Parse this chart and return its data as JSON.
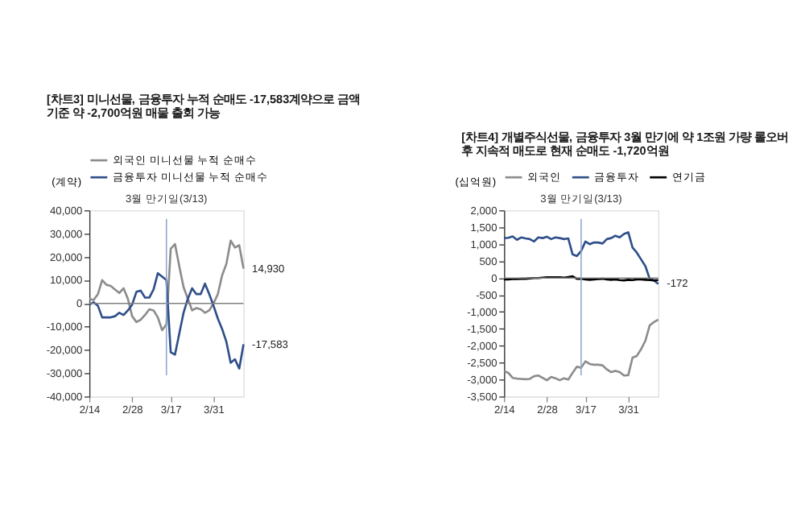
{
  "chart_data": [
    {
      "type": "line",
      "title": "[차트3] 미니선물, 금융투자 누적 순매도 -17,583계약으로 금액 기준 약 -2,700억원 매물 출회 가능",
      "ylabel": "(계약)",
      "legend": "top",
      "categories": [
        "2/14",
        null,
        null,
        null,
        null,
        null,
        null,
        null,
        null,
        null,
        "2/28",
        null,
        null,
        null,
        null,
        null,
        null,
        null,
        null,
        "3/17",
        null,
        null,
        null,
        null,
        null,
        null,
        null,
        null,
        null,
        "3/31",
        null,
        null,
        null,
        null,
        null,
        null,
        null
      ],
      "ylim": [
        -40000,
        40000
      ],
      "yticks": [
        {
          "value": -40000,
          "label": "-40,000"
        },
        {
          "value": -30000,
          "label": "-30,000"
        },
        {
          "value": -20000,
          "label": "-20,000"
        },
        {
          "value": -10000,
          "label": "-10,000"
        },
        {
          "value": 0,
          "label": "0"
        },
        {
          "value": 10000,
          "label": "10,000"
        },
        {
          "value": 20000,
          "label": "20,000"
        },
        {
          "value": 30000,
          "label": "30,000"
        },
        {
          "value": 40000,
          "label": "40,000"
        }
      ],
      "annotations": [
        "3월 만기일(3/13)"
      ],
      "series": [
        {
          "name": "외국인 미니선물 누적 순매수",
          "color": "#8c8c8c",
          "values": [
            2000,
            1500,
            4000,
            10000,
            8000,
            7500,
            6000,
            4500,
            6500,
            2000,
            -5500,
            -8000,
            -7000,
            -5000,
            -2500,
            -3000,
            -6000,
            -11500,
            -9000,
            23500,
            25500,
            16000,
            7000,
            2000,
            -3000,
            -2000,
            -2500,
            -4000,
            -3000,
            0,
            4000,
            12000,
            17000,
            27000,
            24000,
            25000,
            14930
          ],
          "value_labels": [
            null,
            null,
            null,
            null,
            null,
            null,
            null,
            null,
            null,
            null,
            null,
            null,
            null,
            null,
            null,
            null,
            null,
            null,
            null,
            null,
            null,
            null,
            null,
            null,
            null,
            null,
            null,
            null,
            null,
            null,
            null,
            null,
            null,
            null,
            null,
            null,
            "14,930"
          ]
        },
        {
          "name": "금융투자 미니선물 누적 순매수",
          "color": "#2f4f8a",
          "values": [
            -500,
            500,
            -1000,
            -6000,
            -6000,
            -6000,
            -5500,
            -4000,
            -5000,
            -3000,
            -500,
            5000,
            5500,
            2500,
            2500,
            6000,
            13000,
            11500,
            10000,
            -21000,
            -22000,
            -13000,
            -4000,
            2000,
            6500,
            4000,
            4000,
            8500,
            4000,
            -1000,
            -6500,
            -11000,
            -16500,
            -25500,
            -24000,
            -28000,
            -17583
          ],
          "value_labels": [
            null,
            null,
            null,
            null,
            null,
            null,
            null,
            null,
            null,
            null,
            null,
            null,
            null,
            null,
            null,
            null,
            null,
            null,
            null,
            null,
            null,
            null,
            null,
            null,
            null,
            null,
            null,
            null,
            null,
            null,
            null,
            null,
            null,
            null,
            null,
            null,
            "-17,583"
          ]
        }
      ],
      "ref_lines": [
        {
          "axis": "y",
          "value": 0,
          "color": "#808080"
        }
      ]
    },
    {
      "type": "line",
      "title": "[차트4] 개별주식선물, 금융투자 3월 만기에 약 1조원 가량 롤오버 후 지속적 매도로 현재 순매도 -1,720억원",
      "ylabel": "(십억원)",
      "legend": "top",
      "categories": [
        "2/14",
        null,
        null,
        null,
        null,
        null,
        null,
        null,
        null,
        null,
        "2/28",
        null,
        null,
        null,
        null,
        null,
        null,
        null,
        null,
        "3/17",
        null,
        null,
        null,
        null,
        null,
        null,
        null,
        null,
        null,
        "3/31",
        null,
        null,
        null,
        null,
        null,
        null,
        null
      ],
      "ylim": [
        -3500,
        2000
      ],
      "yticks": [
        {
          "value": -3500,
          "label": "-3,500"
        },
        {
          "value": -3000,
          "label": "-3,000"
        },
        {
          "value": -2500,
          "label": "-2,500"
        },
        {
          "value": -2000,
          "label": "-2,000"
        },
        {
          "value": -1500,
          "label": "-1,500"
        },
        {
          "value": -1000,
          "label": "-1,000"
        },
        {
          "value": -500,
          "label": "-500"
        },
        {
          "value": 0,
          "label": "0"
        },
        {
          "value": 500,
          "label": "500"
        },
        {
          "value": 1000,
          "label": "1,000"
        },
        {
          "value": 1500,
          "label": "1,500"
        },
        {
          "value": 2000,
          "label": "2,000"
        }
      ],
      "annotations": [
        "3월 만기일(3/13)"
      ],
      "series": [
        {
          "name": "외국인",
          "color": "#8c8c8c",
          "values": [
            -2750,
            -2800,
            -2950,
            -2970,
            -2980,
            -2990,
            -2980,
            -2900,
            -2880,
            -2950,
            -3020,
            -2920,
            -2960,
            -3020,
            -2960,
            -3000,
            -2800,
            -2620,
            -2650,
            -2460,
            -2540,
            -2560,
            -2560,
            -2580,
            -2700,
            -2780,
            -2740,
            -2780,
            -2880,
            -2870,
            -2350,
            -2300,
            -2100,
            -1850,
            -1400,
            -1300,
            -1230
          ]
        },
        {
          "name": "금융투자",
          "color": "#2f4f8a",
          "values": [
            1180,
            1190,
            1230,
            1130,
            1200,
            1170,
            1150,
            1080,
            1200,
            1180,
            1220,
            1150,
            1200,
            1180,
            1150,
            1170,
            700,
            650,
            800,
            1080,
            1000,
            1050,
            1050,
            1020,
            1150,
            1180,
            1250,
            1200,
            1300,
            1350,
            900,
            750,
            550,
            350,
            -20,
            -70,
            -172
          ],
          "value_labels": [
            null,
            null,
            null,
            null,
            null,
            null,
            null,
            null,
            null,
            null,
            null,
            null,
            null,
            null,
            null,
            null,
            null,
            null,
            null,
            null,
            null,
            null,
            null,
            null,
            null,
            null,
            null,
            null,
            null,
            null,
            null,
            null,
            null,
            null,
            null,
            null,
            "-172"
          ]
        },
        {
          "name": "연기금",
          "color": "#000000",
          "values": [
            -40,
            -40,
            -30,
            -30,
            -20,
            -20,
            -10,
            0,
            0,
            10,
            20,
            20,
            20,
            20,
            10,
            30,
            50,
            -20,
            -20,
            -40,
            -50,
            -40,
            -30,
            -20,
            -40,
            -50,
            -40,
            -60,
            -70,
            -50,
            -60,
            -40,
            -40,
            -50,
            -60,
            -70,
            -60
          ]
        }
      ],
      "ref_lines": [
        {
          "axis": "y",
          "value": 0,
          "color": "#808080"
        }
      ]
    }
  ]
}
